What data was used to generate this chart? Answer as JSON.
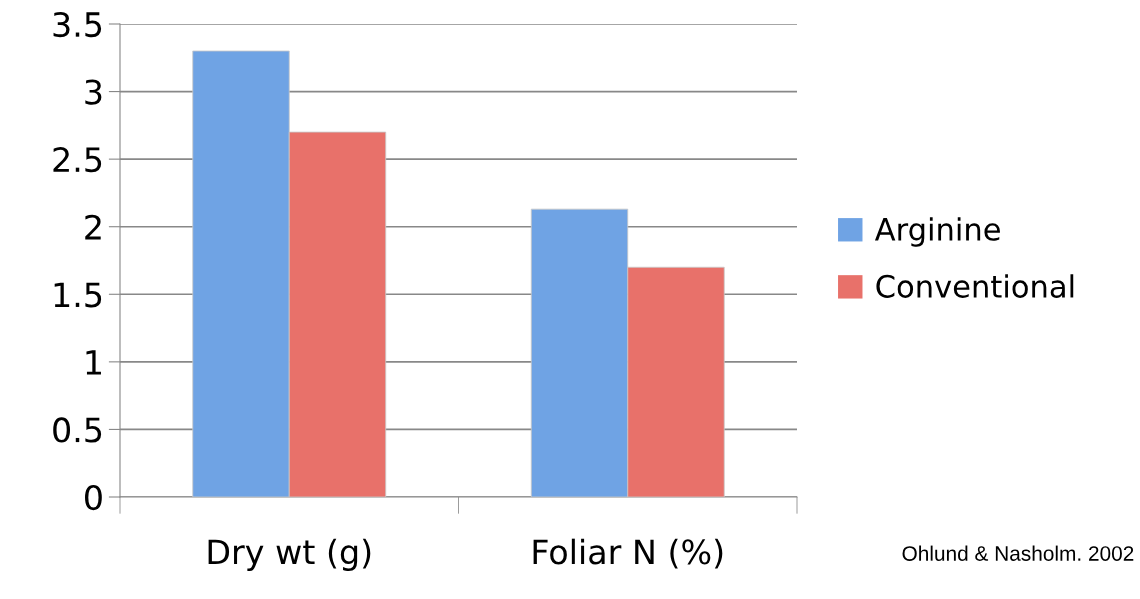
{
  "chart_data": {
    "type": "bar",
    "categories": [
      "Dry wt (g)",
      "Foliar N (%)"
    ],
    "series": [
      {
        "name": "Arginine",
        "color": "#6fa3e4",
        "values": [
          3.3,
          2.13
        ]
      },
      {
        "name": "Conventional",
        "color": "#e8716a",
        "values": [
          2.7,
          1.7
        ]
      }
    ],
    "ylim": [
      0,
      3.5
    ],
    "yticks": [
      0,
      {
        "value": 0.5,
        "label": "0.5"
      },
      1,
      {
        "value": 1.5,
        "label": "1.5"
      },
      2,
      {
        "value": 2.5,
        "label": "2.5"
      },
      3,
      {
        "value": 3.5,
        "label": "3.5"
      }
    ],
    "grid": "y",
    "legend": "right",
    "annotations": [
      "Ohlund & Nasholm. 2002"
    ]
  }
}
